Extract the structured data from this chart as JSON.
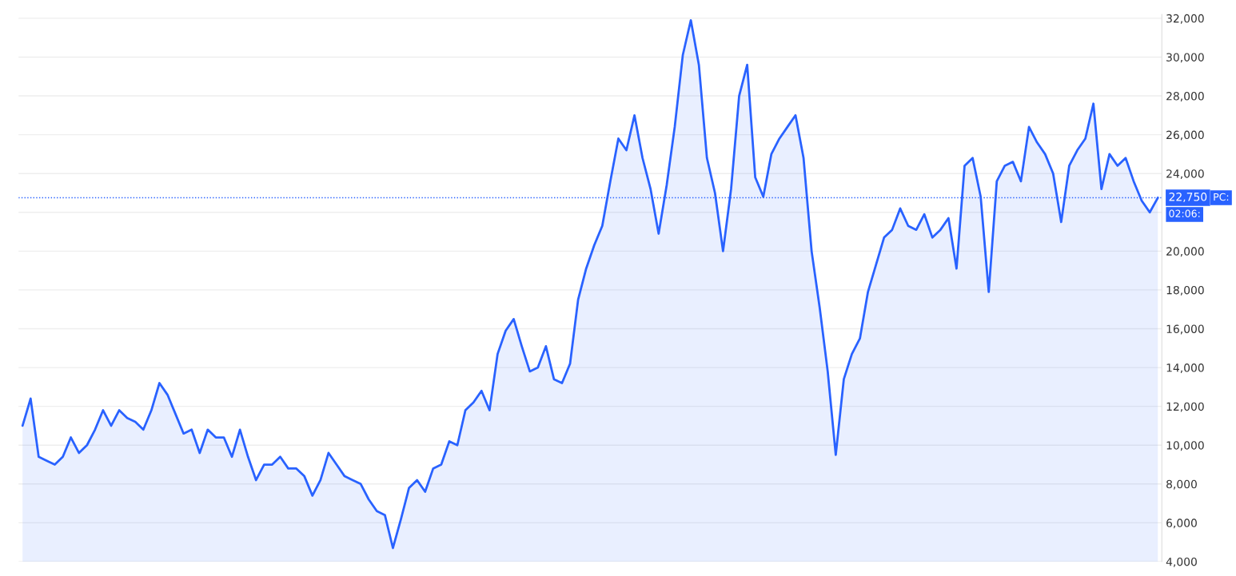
{
  "chart_data": {
    "type": "area",
    "categories": [
      null,
      null,
      null,
      null,
      null,
      null,
      null,
      null,
      null,
      null,
      null,
      null,
      null,
      null,
      null,
      null,
      null,
      null,
      null,
      null,
      null,
      null,
      null,
      null,
      null,
      null,
      null,
      null,
      null,
      null,
      null,
      null,
      null,
      null,
      null,
      null,
      null,
      null,
      null,
      null,
      null,
      null,
      null,
      null,
      null,
      null,
      null,
      null,
      null,
      null,
      null,
      null,
      null,
      null,
      null,
      null,
      null,
      null,
      null,
      null,
      null,
      null,
      null,
      null,
      null,
      null,
      null,
      null,
      null,
      null,
      null,
      null,
      null,
      null,
      null,
      null,
      null,
      null,
      null,
      null,
      null,
      null,
      null,
      null,
      null,
      null,
      null,
      null,
      null,
      null,
      null,
      null,
      null,
      null,
      null,
      null,
      null,
      null,
      null,
      null,
      null,
      null,
      null,
      null,
      null,
      null,
      null,
      null,
      null,
      null,
      null,
      null,
      null,
      null,
      null,
      null,
      null,
      null,
      null,
      null,
      null,
      null,
      null,
      null,
      null,
      null,
      null,
      null,
      null,
      null,
      null,
      null,
      null,
      null,
      null,
      null,
      null,
      null,
      null,
      null,
      null,
      null
    ],
    "series": [
      {
        "color": "#2962ff",
        "values": [
          11000,
          12400,
          9400,
          9200,
          9000,
          9400,
          10400,
          9600,
          10000,
          10800,
          11800,
          11000,
          11800,
          11400,
          11200,
          10800,
          11800,
          13200,
          12600,
          11600,
          10600,
          10800,
          9600,
          10800,
          10400,
          10400,
          9400,
          10800,
          9400,
          8200,
          9000,
          9000,
          9400,
          8800,
          8800,
          8400,
          7400,
          8200,
          9600,
          9000,
          8400,
          8200,
          8000,
          7200,
          6600,
          6400,
          4700,
          6200,
          7800,
          8200,
          7600,
          8800,
          9000,
          10200,
          10000,
          11800,
          12200,
          12800,
          11800,
          14700,
          15900,
          16500,
          15100,
          13800,
          14000,
          15100,
          13400,
          13200,
          14200,
          17500,
          19100,
          20300,
          21300,
          23600,
          25800,
          25200,
          27000,
          24800,
          23200,
          20900,
          23400,
          26400,
          30100,
          31900,
          29600,
          24800,
          23000,
          20000,
          23200,
          28000,
          29600,
          23800,
          22800,
          25000,
          25800,
          26400,
          27000,
          24800,
          20000,
          17100,
          13800,
          9500,
          13400,
          14700,
          15500,
          17900,
          19300,
          20700,
          21100,
          22200,
          21300,
          21100,
          21900,
          20700,
          21100,
          21700,
          19100,
          24400,
          24800,
          22800,
          17900,
          23600,
          24400,
          24600,
          23600,
          26400,
          25600,
          25000,
          24000,
          21500,
          24400,
          25200,
          25800,
          27600,
          23200,
          25000,
          24400,
          24800,
          23600,
          22600,
          22000,
          22750
        ]
      }
    ],
    "ylim": [
      4000,
      32200
    ],
    "yticks": [
      {
        "value": 4000,
        "label": "4,000"
      },
      {
        "value": 6000,
        "label": "6,000"
      },
      {
        "value": 8000,
        "label": "8,000"
      },
      {
        "value": 10000,
        "label": "10,000"
      },
      {
        "value": 12000,
        "label": "12,000"
      },
      {
        "value": 14000,
        "label": "14,000"
      },
      {
        "value": 16000,
        "label": "16,000"
      },
      {
        "value": 18000,
        "label": "18,000"
      },
      {
        "value": 20000,
        "label": "20,000"
      },
      {
        "value": 22000,
        "label": null
      },
      {
        "value": 24000,
        "label": "24,000"
      },
      {
        "value": 26000,
        "label": "26,000"
      },
      {
        "value": 28000,
        "label": "28,000"
      },
      {
        "value": 30000,
        "label": "30,000"
      },
      {
        "value": 32000,
        "label": "32,000"
      }
    ],
    "ref_lines": [
      {
        "axis": "y",
        "value": 22750,
        "label": "22,750",
        "color": "#2962ff",
        "line_style": "dotted"
      }
    ],
    "annotations": [
      "PC:",
      "02:06:"
    ],
    "grid": "y",
    "tick_labels": "y",
    "legend": false
  }
}
